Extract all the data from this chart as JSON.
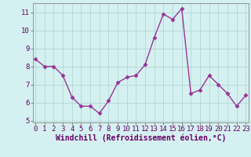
{
  "x": [
    0,
    1,
    2,
    3,
    4,
    5,
    6,
    7,
    8,
    9,
    10,
    11,
    12,
    13,
    14,
    15,
    16,
    17,
    18,
    19,
    20,
    21,
    22,
    23
  ],
  "y": [
    8.4,
    8.0,
    8.0,
    7.5,
    6.3,
    5.8,
    5.8,
    5.4,
    6.1,
    7.1,
    7.4,
    7.5,
    8.1,
    9.6,
    10.9,
    10.6,
    11.2,
    6.5,
    6.7,
    7.5,
    7.0,
    6.5,
    5.8,
    6.4
  ],
  "line_color": "#993399",
  "marker": "D",
  "marker_size": 2.5,
  "linewidth": 1.0,
  "bg_color": "#d5f0f0",
  "grid_color": "#b0d8d8",
  "xlabel": "Windchill (Refroidissement éolien,°C)",
  "xlabel_color": "#660066",
  "xlabel_fontsize": 7,
  "tick_color": "#660066",
  "tick_fontsize": 6.5,
  "ylim": [
    4.9,
    11.5
  ],
  "yticks": [
    5,
    6,
    7,
    8,
    9,
    10,
    11
  ],
  "xticks": [
    0,
    1,
    2,
    3,
    4,
    5,
    6,
    7,
    8,
    9,
    10,
    11,
    12,
    13,
    14,
    15,
    16,
    17,
    18,
    19,
    20,
    21,
    22,
    23
  ],
  "xlim": [
    -0.3,
    23.3
  ]
}
